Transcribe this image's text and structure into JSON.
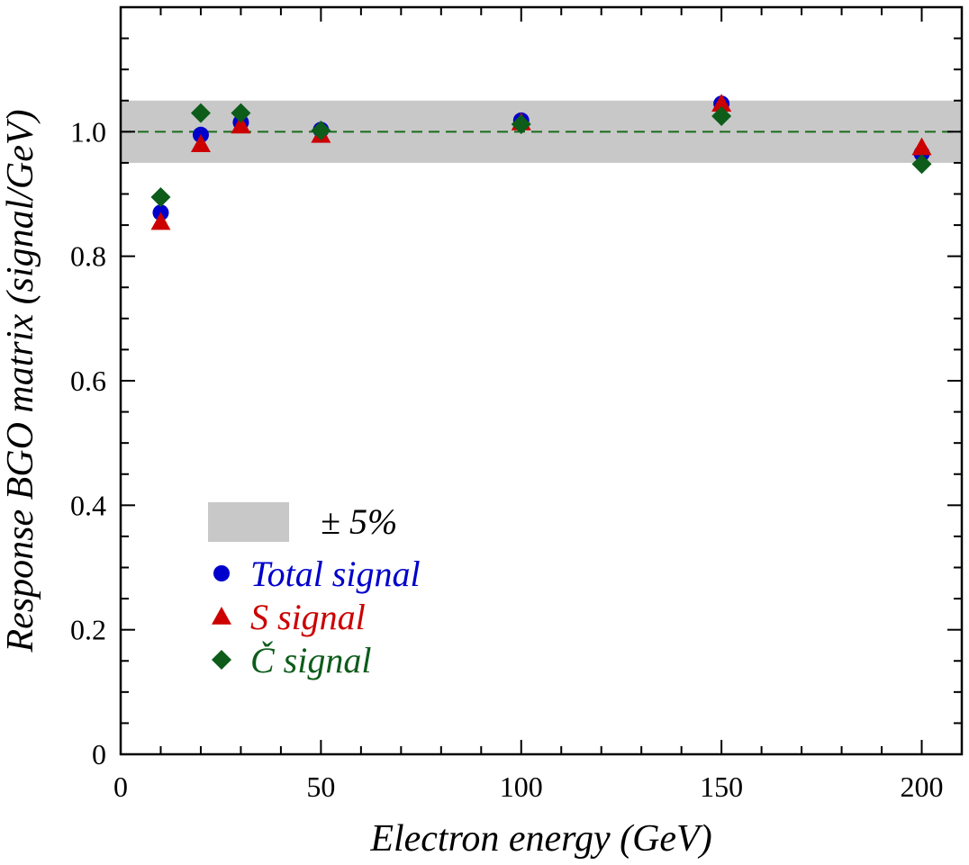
{
  "chart_data": {
    "type": "scatter",
    "title": "",
    "xlabel": "Electron energy (GeV)",
    "ylabel": "Response BGO matrix (signal/GeV)",
    "xlim": [
      0,
      210
    ],
    "ylim": [
      0,
      1.2
    ],
    "xticks": [
      0,
      50,
      100,
      150,
      200
    ],
    "yticks": [
      0,
      0.2,
      0.4,
      0.6,
      0.8,
      1.0
    ],
    "ytick_labels": [
      "0",
      "0.2",
      "0.4",
      "0.6",
      "0.8",
      "1.0"
    ],
    "xtick_labels": [
      "0",
      "50",
      "100",
      "150",
      "200"
    ],
    "reference_line": {
      "y": 1.0,
      "style": "dashed",
      "color": "#1a6b1a"
    },
    "band": {
      "ymin": 0.95,
      "ymax": 1.05,
      "color": "#c8c8c8",
      "legend": "± 5%"
    },
    "grid": false,
    "legend_position": "lower-left",
    "series": [
      {
        "name": "Total signal",
        "marker": "circle",
        "color": "#0000cc",
        "x": [
          10,
          20,
          30,
          50,
          100,
          150,
          200
        ],
        "y": [
          0.87,
          0.995,
          1.015,
          1.003,
          1.018,
          1.045,
          0.965
        ]
      },
      {
        "name": "S signal",
        "marker": "triangle",
        "color": "#cc0000",
        "x": [
          10,
          20,
          30,
          50,
          100,
          150,
          200
        ],
        "y": [
          0.855,
          0.98,
          1.01,
          0.995,
          1.015,
          1.045,
          0.975
        ]
      },
      {
        "name": "Č signal",
        "marker": "diamond",
        "color": "#0d5c1a",
        "x": [
          10,
          20,
          30,
          50,
          100,
          150,
          200
        ],
        "y": [
          0.895,
          1.03,
          1.03,
          1.002,
          1.012,
          1.025,
          0.948
        ]
      }
    ]
  }
}
